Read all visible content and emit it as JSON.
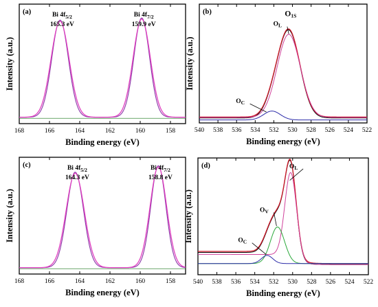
{
  "chart_data": [
    {
      "id": "a",
      "panel_label": "(a)",
      "type": "line",
      "xlabel": "Binding energy (eV)",
      "ylabel": "Intensity (a.u.)",
      "xlim": [
        168,
        157
      ],
      "x_reversed": true,
      "xticks": [
        168,
        166,
        164,
        162,
        160,
        158
      ],
      "y_tick_labels": false,
      "baseline": 0.06,
      "series": [
        {
          "color": "#8a36a8",
          "width": 1.1,
          "kind": "peaks",
          "peaks": [
            {
              "center": 165.3,
              "height": 0.91,
              "sigma": 0.55
            },
            {
              "center": 159.9,
              "height": 0.93,
              "sigma": 0.52
            }
          ]
        },
        {
          "color": "#e040c0",
          "width": 1.3,
          "kind": "peaks",
          "peaks": [
            {
              "center": 165.3,
              "height": 0.9,
              "sigma": 0.6
            },
            {
              "center": 159.9,
              "height": 0.92,
              "sigma": 0.57
            }
          ]
        },
        {
          "color": "#3a8a3a",
          "width": 0.8,
          "kind": "flat",
          "value": 0.05
        }
      ],
      "annotations": [
        {
          "main": "Bi 4f",
          "sub": "5/2",
          "value": "165.3 eV",
          "x": 165.3
        },
        {
          "main": "Bi 4f",
          "sub": "7/2",
          "value": "159.9 eV",
          "x": 159.9
        }
      ]
    },
    {
      "id": "b",
      "panel_label": "(b)",
      "type": "line",
      "xlabel": "Binding energy (eV)",
      "ylabel": "Intensity (a.u.)",
      "xlim": [
        540,
        522
      ],
      "x_reversed": true,
      "xticks": [
        540,
        538,
        536,
        534,
        532,
        530,
        528,
        526,
        524,
        522
      ],
      "y_tick_labels": false,
      "series": [
        {
          "color": "#000000",
          "width": 1.0,
          "kind": "sum",
          "baseline": 0.05,
          "peaks": [
            {
              "center": 530.4,
              "height": 0.88,
              "sigma": 1.2
            },
            {
              "center": 532.2,
              "height": 0.09,
              "sigma": 0.85
            }
          ]
        },
        {
          "color": "#d11a2a",
          "width": 1.3,
          "kind": "sum",
          "baseline": 0.06,
          "peaks": [
            {
              "center": 530.4,
              "height": 0.88,
              "sigma": 1.2
            },
            {
              "center": 532.2,
              "height": 0.09,
              "sigma": 0.85
            }
          ]
        },
        {
          "color": "#d0409a",
          "width": 1.0,
          "kind": "sum",
          "baseline": 0.055,
          "peaks": [
            {
              "center": 530.4,
              "height": 0.84,
              "sigma": 1.25
            }
          ]
        },
        {
          "color": "#2a2aa8",
          "width": 1.0,
          "kind": "sum",
          "baseline": 0.03,
          "peaks": [
            {
              "center": 532.2,
              "height": 0.09,
              "sigma": 0.9
            }
          ]
        }
      ],
      "annotations": [
        {
          "main": "O",
          "sub": "1S",
          "x": 530.2,
          "y": 1.08,
          "size": "lg"
        },
        {
          "main": "O",
          "sub": "L",
          "x": 531.6,
          "y": 0.98,
          "leader_to": [
            530.4,
            0.9
          ]
        },
        {
          "main": "O",
          "sub": "C",
          "x": 535.6,
          "y": 0.2,
          "leader_to": [
            532.8,
            0.11
          ]
        }
      ]
    },
    {
      "id": "c",
      "panel_label": "(c)",
      "type": "line",
      "xlabel": "Binding energy (eV)",
      "ylabel": "Intensity (a.u.)",
      "xlim": [
        168,
        157
      ],
      "x_reversed": true,
      "xticks": [
        168,
        166,
        164,
        162,
        160,
        158
      ],
      "y_tick_labels": false,
      "series": [
        {
          "color": "#8a36a8",
          "width": 1.1,
          "kind": "peaks",
          "peaks": [
            {
              "center": 164.3,
              "height": 0.9,
              "sigma": 0.55
            },
            {
              "center": 158.8,
              "height": 0.96,
              "sigma": 0.5
            }
          ]
        },
        {
          "color": "#e040c0",
          "width": 1.3,
          "kind": "peaks",
          "peaks": [
            {
              "center": 164.3,
              "height": 0.89,
              "sigma": 0.6
            },
            {
              "center": 158.8,
              "height": 0.95,
              "sigma": 0.55
            }
          ]
        },
        {
          "color": "#3a8a3a",
          "width": 0.8,
          "kind": "flat",
          "value": 0.05
        }
      ],
      "annotations": [
        {
          "main": "Bi 4f",
          "sub": "5/2",
          "value": "164.3 eV",
          "x": 164.3
        },
        {
          "main": "Bi 4f",
          "sub": "7/2",
          "value": "158.8 eV",
          "x": 158.8
        }
      ]
    },
    {
      "id": "d",
      "panel_label": "(d)",
      "type": "line",
      "xlabel": "Binding energy (eV)",
      "ylabel": "Intensity (a.u.)",
      "xlim": [
        540,
        522
      ],
      "x_reversed": true,
      "xticks": [
        540,
        538,
        536,
        534,
        532,
        530,
        528,
        526,
        524,
        522
      ],
      "y_tick_labels": false,
      "series": [
        {
          "color": "#000000",
          "width": 1.0,
          "kind": "sum",
          "baseline": 0.1,
          "step": {
            "center": 529.8,
            "left": 0.12,
            "right": 0.0,
            "width": 0.6
          },
          "peaks": [
            {
              "center": 530.2,
              "height": 0.86,
              "sigma": 0.6
            },
            {
              "center": 531.6,
              "height": 0.36,
              "sigma": 0.8
            },
            {
              "center": 532.7,
              "height": 0.08,
              "sigma": 0.6
            }
          ]
        },
        {
          "color": "#d11a2a",
          "width": 1.3,
          "kind": "sum",
          "baseline": 0.11,
          "step": {
            "center": 529.8,
            "left": 0.12,
            "right": 0.0,
            "width": 0.6
          },
          "peaks": [
            {
              "center": 530.2,
              "height": 0.86,
              "sigma": 0.6
            },
            {
              "center": 531.6,
              "height": 0.36,
              "sigma": 0.8
            },
            {
              "center": 532.7,
              "height": 0.08,
              "sigma": 0.6
            }
          ]
        },
        {
          "color": "#d0409a",
          "width": 1.0,
          "kind": "sum",
          "baseline": 0.1,
          "step": {
            "center": 529.8,
            "left": 0.1,
            "right": 0.0,
            "width": 0.6
          },
          "peaks": [
            {
              "center": 530.2,
              "height": 0.84,
              "sigma": 0.62
            }
          ]
        },
        {
          "color": "#2aa83a",
          "width": 1.0,
          "kind": "sum",
          "baseline": 0.11,
          "peaks": [
            {
              "center": 531.6,
              "height": 0.36,
              "sigma": 0.75
            }
          ]
        },
        {
          "color": "#2a2aa8",
          "width": 1.0,
          "kind": "sum",
          "baseline": 0.11,
          "peaks": [
            {
              "center": 532.7,
              "height": 0.08,
              "sigma": 0.6
            }
          ]
        }
      ],
      "annotations": [
        {
          "main": "O",
          "sub": "L",
          "x": 529.9,
          "y": 1.05,
          "leader_to": [
            530.3,
            0.93
          ]
        },
        {
          "main": "O",
          "sub": "V",
          "x": 533.0,
          "y": 0.62,
          "leader_to": [
            531.7,
            0.48
          ]
        },
        {
          "main": "O",
          "sub": "C",
          "x": 535.3,
          "y": 0.32,
          "leader_to": [
            532.8,
            0.2
          ]
        }
      ]
    }
  ]
}
